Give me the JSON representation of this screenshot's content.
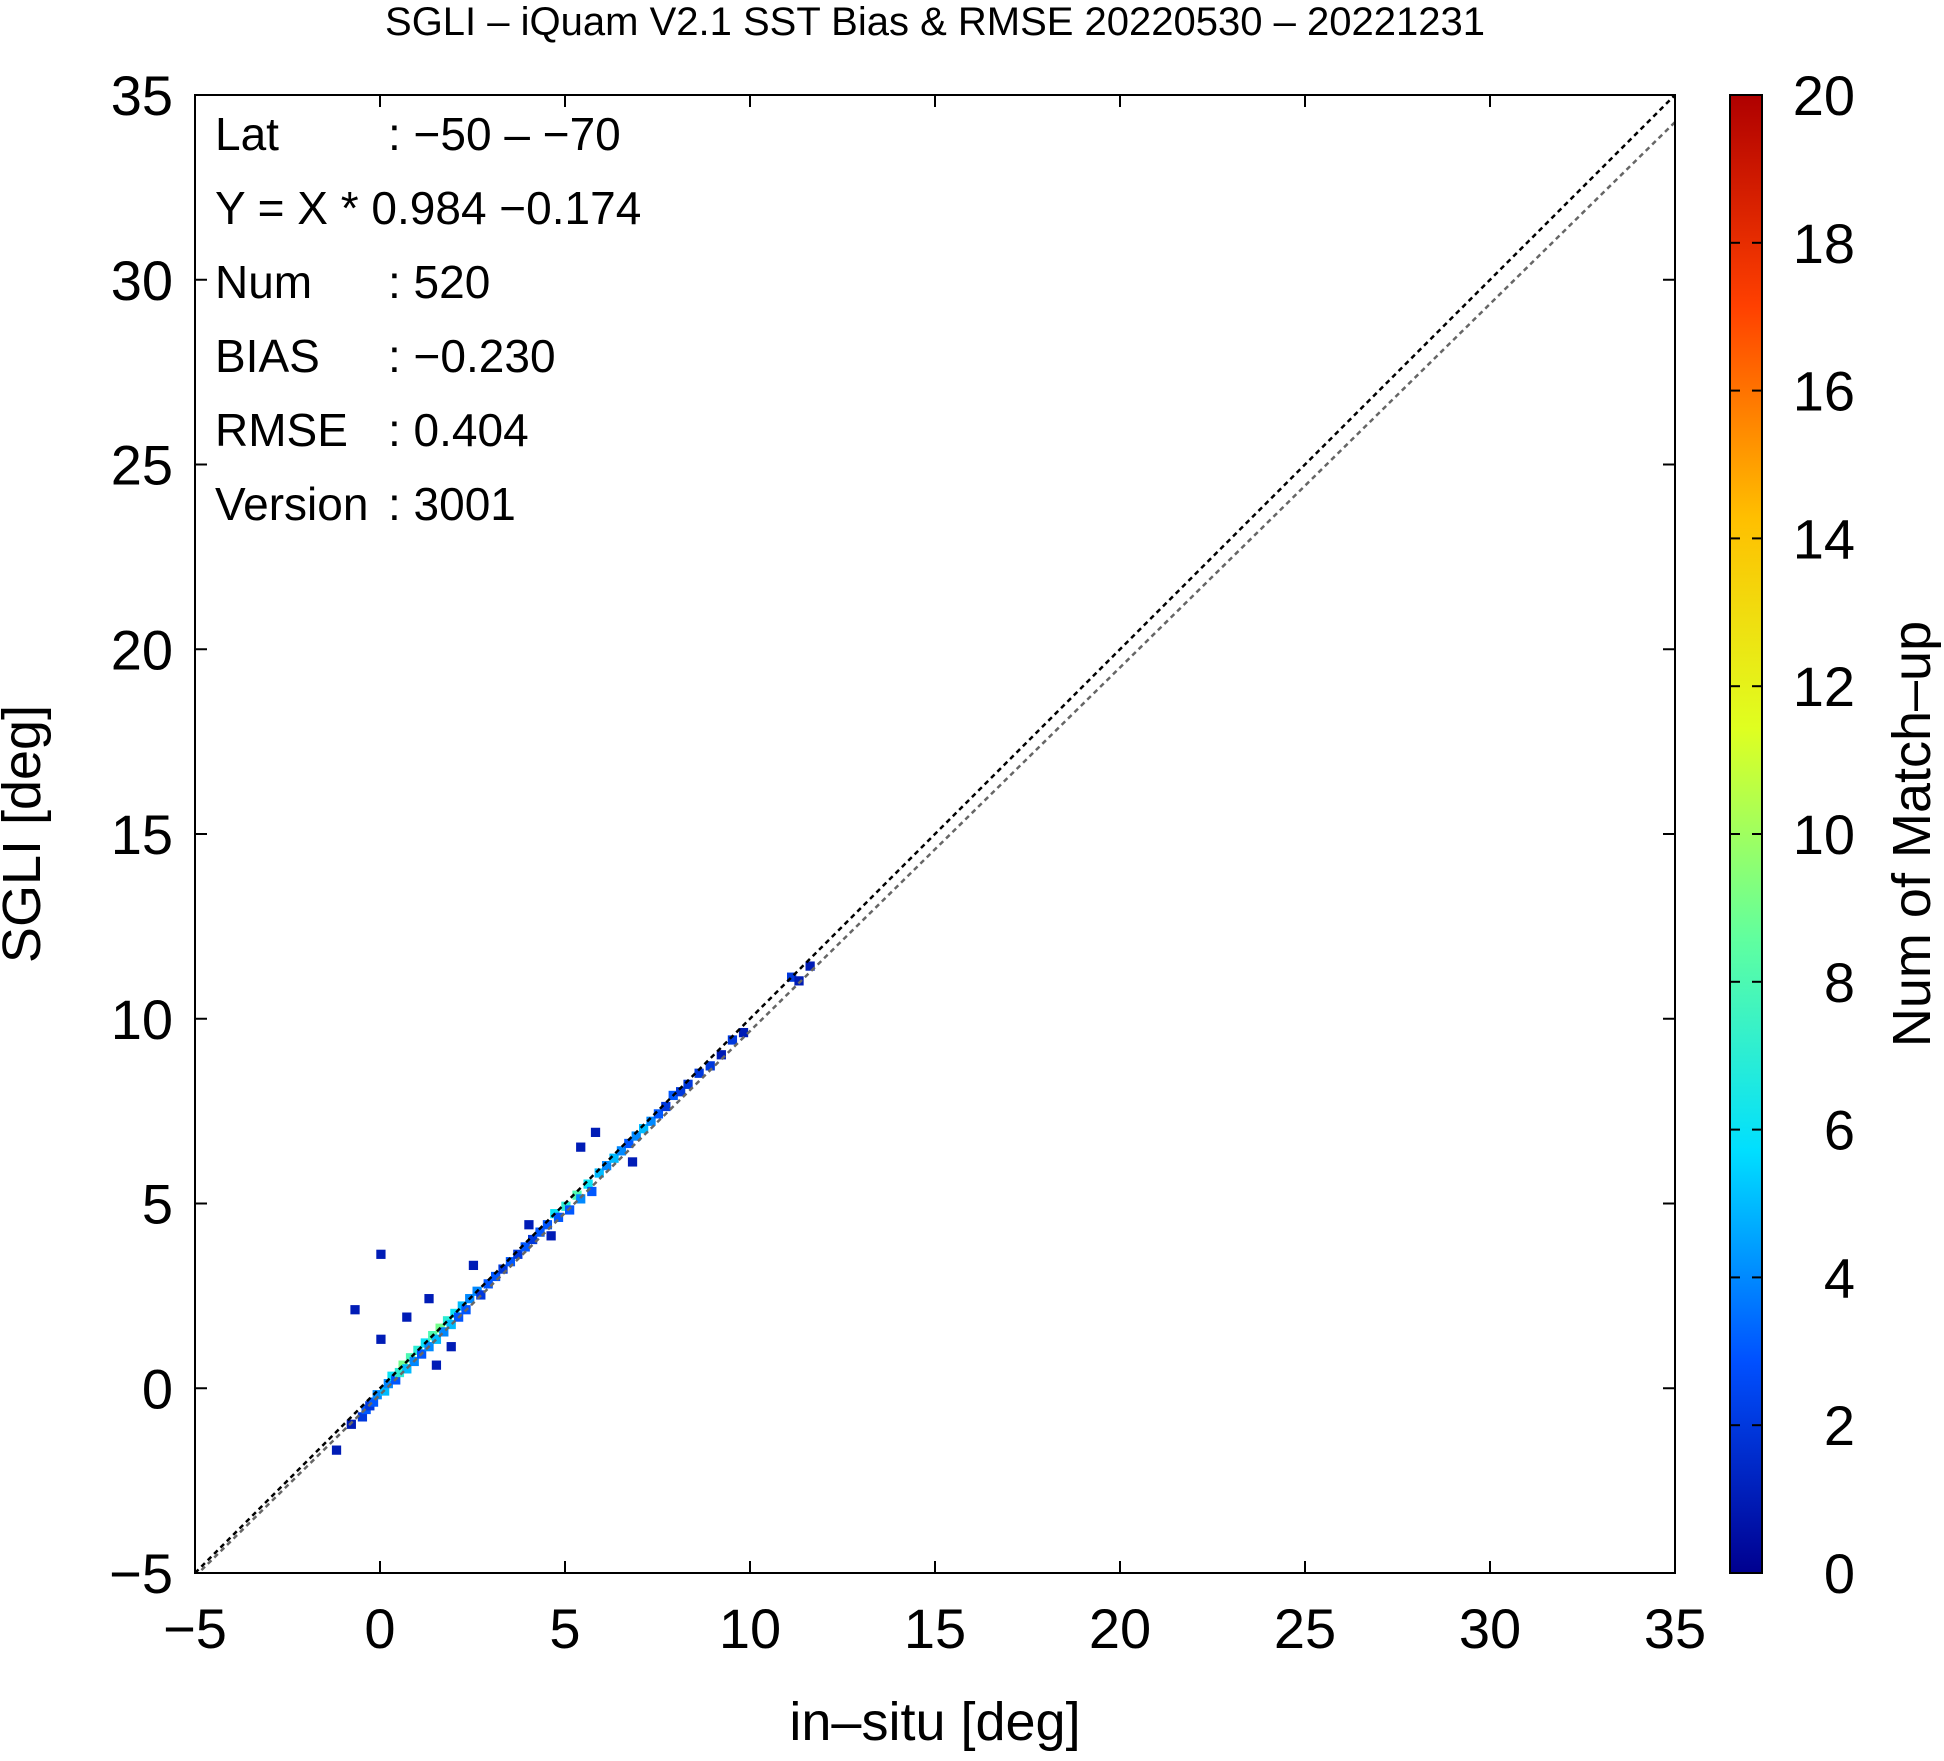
{
  "chart_data": {
    "type": "heatmap",
    "title": "SGLI – iQuam V2.1 SST Bias & RMSE 20220530 – 20221231",
    "xlabel": "in–situ [deg]",
    "ylabel": "SGLI [deg]",
    "xlim": [
      -5,
      35
    ],
    "ylim": [
      -5,
      35
    ],
    "x_ticks": [
      "−5",
      "0",
      "5",
      "10",
      "15",
      "20",
      "25",
      "30",
      "35"
    ],
    "y_ticks": [
      "−5",
      "0",
      "5",
      "10",
      "15",
      "20",
      "25",
      "30",
      "35"
    ],
    "grid": false,
    "reference_lines": [
      {
        "name": "1:1",
        "slope": 1.0,
        "intercept": 0.0,
        "color": "#000000"
      },
      {
        "name": "fit",
        "slope": 0.984,
        "intercept": -0.174,
        "color": "#666666"
      }
    ],
    "colorbar": {
      "label": "Num of Match–up",
      "min": 0,
      "max": 20,
      "ticks": [
        "0",
        "2",
        "4",
        "6",
        "8",
        "10",
        "12",
        "14",
        "16",
        "18",
        "20"
      ],
      "colormap": [
        "#00008f",
        "#0050ff",
        "#00dfff",
        "#60ff9f",
        "#dfff20",
        "#ffbf00",
        "#ff4000",
        "#af0000"
      ]
    },
    "bin_size": 0.25,
    "cells": [
      [
        -1.3,
        -1.8,
        1
      ],
      [
        -0.9,
        -1.1,
        1
      ],
      [
        -0.6,
        -0.9,
        2
      ],
      [
        -0.5,
        -0.7,
        3
      ],
      [
        -0.4,
        -0.6,
        2
      ],
      [
        -0.3,
        -0.5,
        3
      ],
      [
        -0.2,
        -0.3,
        4
      ],
      [
        0.0,
        -0.2,
        5
      ],
      [
        0.1,
        0.0,
        4
      ],
      [
        0.2,
        0.2,
        6
      ],
      [
        0.3,
        0.1,
        3
      ],
      [
        0.4,
        0.3,
        7
      ],
      [
        0.5,
        0.5,
        9
      ],
      [
        0.6,
        0.4,
        5
      ],
      [
        0.7,
        0.7,
        8
      ],
      [
        0.8,
        0.6,
        4
      ],
      [
        0.9,
        0.9,
        7
      ],
      [
        1.0,
        0.8,
        3
      ],
      [
        1.1,
        1.1,
        6
      ],
      [
        1.2,
        1.0,
        4
      ],
      [
        1.3,
        1.3,
        8
      ],
      [
        1.4,
        1.2,
        5
      ],
      [
        1.5,
        1.5,
        9
      ],
      [
        1.6,
        1.4,
        4
      ],
      [
        1.7,
        1.7,
        7
      ],
      [
        1.8,
        1.6,
        5
      ],
      [
        1.9,
        1.9,
        6
      ],
      [
        2.0,
        1.8,
        3
      ],
      [
        2.1,
        2.1,
        5
      ],
      [
        2.2,
        2.0,
        3
      ],
      [
        2.3,
        2.3,
        4
      ],
      [
        2.5,
        2.5,
        4
      ],
      [
        2.6,
        2.4,
        2
      ],
      [
        2.8,
        2.7,
        3
      ],
      [
        3.0,
        2.9,
        3
      ],
      [
        3.2,
        3.1,
        2
      ],
      [
        3.4,
        3.3,
        3
      ],
      [
        3.6,
        3.5,
        2
      ],
      [
        3.8,
        3.7,
        3
      ],
      [
        4.0,
        3.9,
        2
      ],
      [
        4.2,
        4.1,
        3
      ],
      [
        4.4,
        4.3,
        3
      ],
      [
        4.6,
        4.6,
        6
      ],
      [
        4.7,
        4.5,
        3
      ],
      [
        4.9,
        4.8,
        7
      ],
      [
        5.0,
        4.7,
        3
      ],
      [
        5.2,
        5.1,
        8
      ],
      [
        5.3,
        5.0,
        4
      ],
      [
        5.5,
        5.4,
        6
      ],
      [
        5.6,
        5.2,
        3
      ],
      [
        5.8,
        5.7,
        5
      ],
      [
        6.0,
        5.9,
        4
      ],
      [
        6.2,
        6.1,
        5
      ],
      [
        6.4,
        6.3,
        4
      ],
      [
        6.6,
        6.5,
        3
      ],
      [
        6.8,
        6.7,
        4
      ],
      [
        7.0,
        6.9,
        5
      ],
      [
        7.2,
        7.1,
        4
      ],
      [
        7.4,
        7.3,
        3
      ],
      [
        7.6,
        7.5,
        2
      ],
      [
        7.8,
        7.8,
        3
      ],
      [
        8.0,
        7.9,
        2
      ],
      [
        8.2,
        8.1,
        2
      ],
      [
        8.5,
        8.4,
        2
      ],
      [
        8.8,
        8.6,
        2
      ],
      [
        9.1,
        8.9,
        1
      ],
      [
        9.4,
        9.3,
        2
      ],
      [
        9.7,
        9.5,
        1
      ],
      [
        11.0,
        11.0,
        2
      ],
      [
        11.2,
        10.9,
        1
      ],
      [
        11.5,
        11.3,
        1
      ],
      [
        -0.1,
        3.5,
        1
      ],
      [
        -0.8,
        2.0,
        1
      ],
      [
        -0.1,
        1.2,
        1
      ],
      [
        0.6,
        1.8,
        1
      ],
      [
        1.2,
        2.3,
        1
      ],
      [
        2.4,
        3.2,
        1
      ],
      [
        5.3,
        6.4,
        1
      ],
      [
        5.7,
        6.8,
        1
      ],
      [
        3.9,
        4.3,
        1
      ],
      [
        1.4,
        0.5,
        1
      ],
      [
        1.8,
        1.0,
        1
      ],
      [
        4.5,
        4.0,
        1
      ],
      [
        6.7,
        6.0,
        1
      ]
    ],
    "stats": [
      {
        "label": "Lat",
        "value": ": −50 – −70"
      },
      {
        "label": "Y = X * 0.984 −0.174",
        "value": ""
      },
      {
        "label": "Num",
        "value": ": 520"
      },
      {
        "label": "BIAS",
        "value": ": −0.230"
      },
      {
        "label": "RMSE",
        "value": ": 0.404"
      },
      {
        "label": "Version",
        "value": ": 3001"
      }
    ]
  }
}
